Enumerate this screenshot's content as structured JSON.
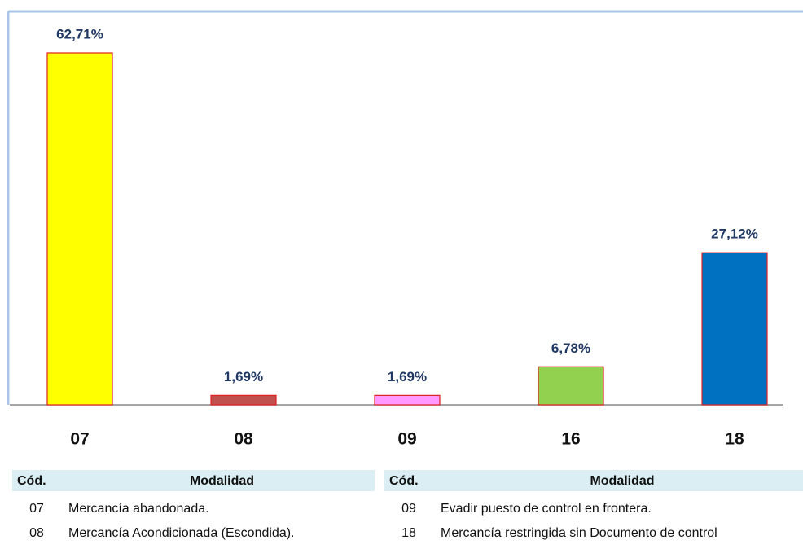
{
  "chart_data": {
    "type": "bar",
    "categories": [
      "07",
      "08",
      "09",
      "16",
      "18"
    ],
    "values": [
      62.71,
      1.69,
      1.69,
      6.78,
      27.12
    ],
    "value_labels": [
      "62,71%",
      "1,69%",
      "1,69%",
      "6,78%",
      "27,12%"
    ],
    "colors": [
      "#ffff00",
      "#c0504d",
      "#ff99ff",
      "#92d050",
      "#0070c0"
    ]
  },
  "tables": [
    {
      "header": [
        "Cód.",
        "Modalidad"
      ],
      "rows": [
        [
          "07",
          "Mercancía abandonada."
        ],
        [
          "08",
          "Mercancía Acondicionada (Escondida)."
        ]
      ]
    },
    {
      "header": [
        "Cód.",
        "Modalidad"
      ],
      "rows": [
        [
          "09",
          "Evadir puesto de control en frontera."
        ],
        [
          "18",
          "Mercancía restringida sin Documento de control"
        ]
      ]
    }
  ]
}
